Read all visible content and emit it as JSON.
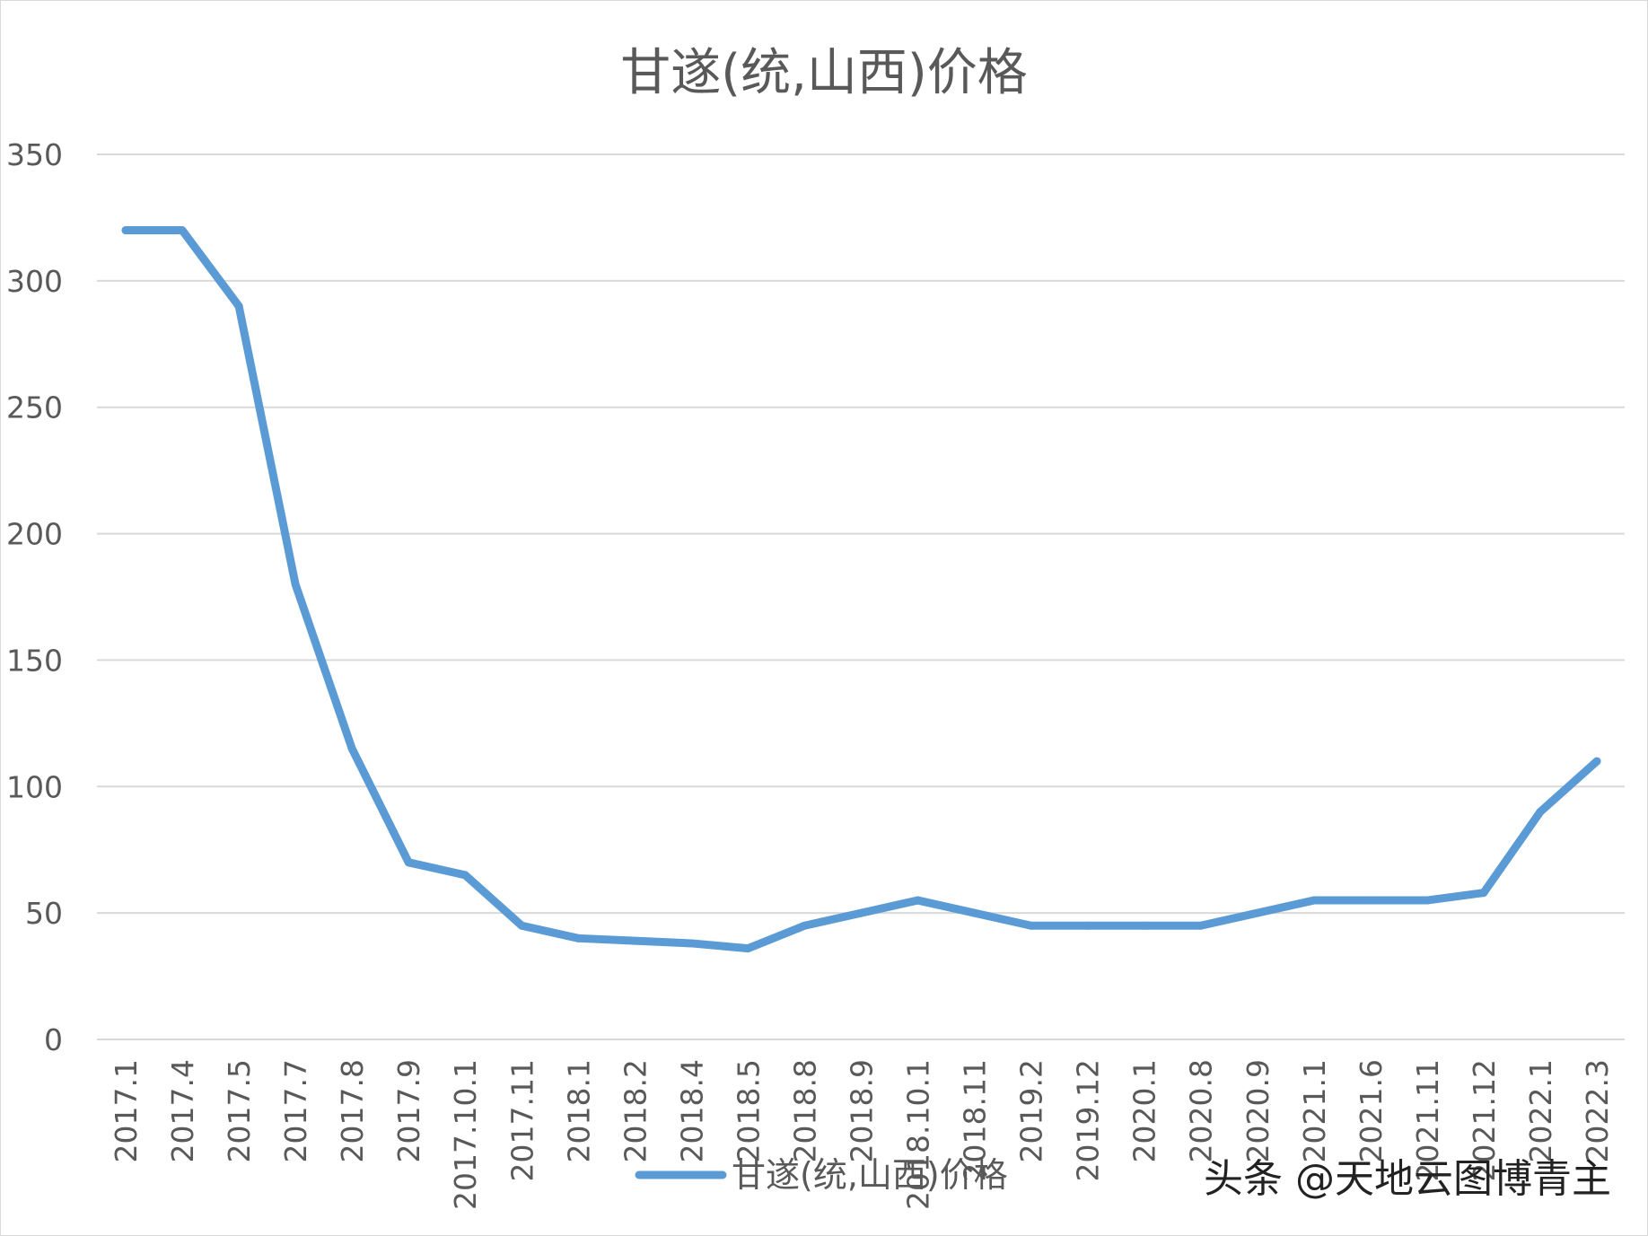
{
  "chart_data": {
    "type": "line",
    "title": "甘遂(统,山西)价格",
    "xlabel": "",
    "ylabel": "",
    "ylim": [
      0,
      350
    ],
    "yticks": [
      0,
      50,
      100,
      150,
      200,
      250,
      300,
      350
    ],
    "grid": true,
    "legend_position": "bottom",
    "categories": [
      "2017.1",
      "2017.4",
      "2017.5",
      "2017.7",
      "2017.8",
      "2017.9",
      "2017.10.1",
      "2017.11",
      "2018.1",
      "2018.2",
      "2018.4",
      "2018.5",
      "2018.8",
      "2018.9",
      "2018.10.1",
      "2018.11",
      "2019.2",
      "2019.12",
      "2020.1",
      "2020.8",
      "2020.9",
      "2021.1",
      "2021.6",
      "2021.11",
      "2021.12",
      "2022.1",
      "2022.3"
    ],
    "series": [
      {
        "name": "甘遂(统,山西)价格",
        "color": "#5b9bd5",
        "values": [
          320,
          320,
          290,
          180,
          115,
          70,
          65,
          45,
          40,
          39,
          38,
          36,
          45,
          50,
          55,
          50,
          45,
          45,
          45,
          45,
          50,
          55,
          55,
          55,
          58,
          90,
          110
        ]
      }
    ]
  },
  "watermark": "头条 @天地云图博青主",
  "colors": {
    "grid": "#d9d9d9",
    "text": "#595959",
    "axis": "#d9d9d9"
  }
}
